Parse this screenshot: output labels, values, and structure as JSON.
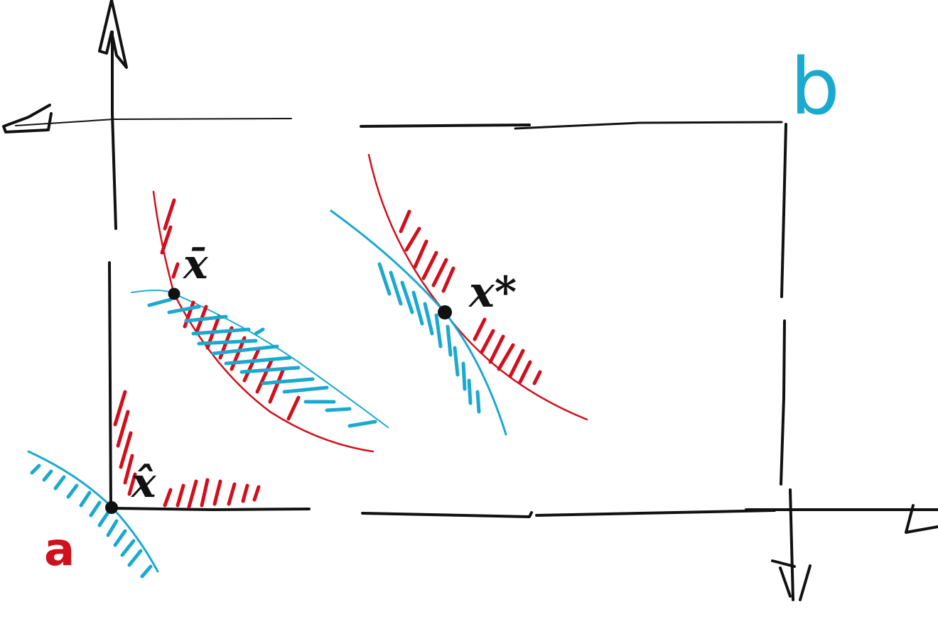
{
  "colors": {
    "ink": "#111111",
    "red": "#d0101c",
    "blue": "#1ba9cf",
    "background": "#ffffff"
  },
  "labels": {
    "a": "a",
    "b": "b",
    "x_bar": "x̄",
    "x_hat": "x̂",
    "x_star": "x*"
  }
}
